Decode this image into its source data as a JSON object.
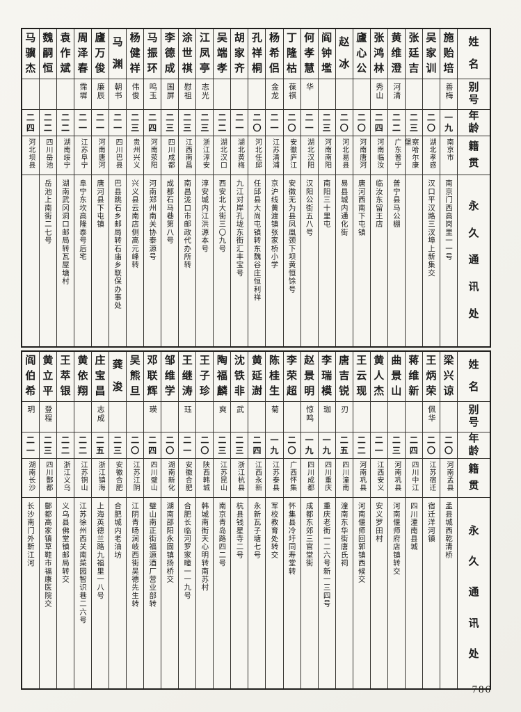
{
  "page_number": "786",
  "header_labels": {
    "name": "姓名",
    "alias": "别号",
    "age": "年龄",
    "native": "籍贯",
    "address": "永久通讯处"
  },
  "sections": [
    {
      "persons": [
        {
          "name": "施贻培",
          "alias": "善梅",
          "age": "一九",
          "native": "南京市",
          "address": "南京门西高岗里一一号"
        },
        {
          "name": "吴家训",
          "alias": "",
          "age": "二〇",
          "native": "湖北孝感",
          "address": "汉口平汉路三汊埠上新集交"
        },
        {
          "name": "张廷吉",
          "alias": "",
          "age": "二三",
          "native": "察哈尔康堡",
          "address": ""
        },
        {
          "name": "黄维澄",
          "alias": "河清",
          "age": "二二",
          "native": "广东普宁",
          "address": "普宁县马公棚"
        },
        {
          "name": "张鸿林",
          "alias": "秀山",
          "age": "二四",
          "native": "河南临汝",
          "address": "临汝东留王店"
        },
        {
          "name": "廬心公",
          "alias": "",
          "age": "二〇",
          "native": "河南唐河",
          "address": "唐河西南下屯镇"
        },
        {
          "name": "赵冰",
          "alias": "",
          "age": "二〇",
          "native": "河北易县",
          "address": "易县城内通化街"
        },
        {
          "name": "阎钟壏",
          "alias": "",
          "age": "二三",
          "native": "河南南阳",
          "address": "南阳三十里屯"
        },
        {
          "name": "何孝慧",
          "alias": "华",
          "age": "二一",
          "native": "湖北汉阳",
          "address": "汉阳公街五八号"
        },
        {
          "name": "丁隆枯",
          "alias": "葆祺",
          "age": "二〇",
          "native": "安徽庐江",
          "address": "安徽无为县凤凰颈下坝黄恒馀号"
        },
        {
          "name": "杨希侣",
          "alias": "金龙",
          "age": "二一",
          "native": "江苏清浦",
          "address": "京沪线黄渡镇张家桥小学"
        },
        {
          "name": "孔祥桐",
          "alias": "",
          "age": "二〇",
          "native": "河北任邱",
          "address": "任邱县大尚屯镇转东魏谷庄恒利祥"
        },
        {
          "name": "胡家齐",
          "alias": "",
          "age": "二一",
          "native": "湖北黄梅",
          "address": "九江对岸孔垅东街汇丰宝号"
        },
        {
          "name": "吴端孝",
          "alias": "",
          "age": "二二",
          "native": "湖北汉口",
          "address": "西安北大街三〇九号"
        },
        {
          "name": "江凤亭",
          "alias": "志光",
          "age": "二三",
          "native": "浙江淳安",
          "address": "淳安城内江洪源本号"
        },
        {
          "name": "涂世祺",
          "alias": "慰祖",
          "age": "二三",
          "native": "江西南昌",
          "address": "南昌泷口市邮政代办所转"
        },
        {
          "name": "李德成",
          "alias": "国屏",
          "age": "二三",
          "native": "四川成都",
          "address": "成都石马巷第八号"
        },
        {
          "name": "马振环",
          "alias": "鸣玉",
          "age": "二四",
          "native": "河南荥阳",
          "address": "河南郑州南关协泰源号"
        },
        {
          "name": "杨健祥",
          "alias": "伟俊",
          "age": "二三",
          "native": "贵州兴义",
          "address": "兴义县云南店侧高元峰转"
        },
        {
          "name": "马渊",
          "alias": "朝书",
          "age": "二一",
          "native": "四川巴县",
          "address": "巴县跳石乡邮局转石庙乡联保办事处"
        },
        {
          "name": "廬万俊",
          "alias": "廉辰",
          "age": "二一",
          "native": "河南唐河",
          "address": "唐河县下屯镇"
        },
        {
          "name": "周泽春",
          "alias": "霈墀",
          "age": "二一",
          "native": "江苏阜宁",
          "address": "阜宁东坎高隆泰号后宅"
        },
        {
          "name": "袁作斌",
          "alias": "",
          "age": "二二",
          "native": "湖南绥宁",
          "address": "湖南武冈洞口邮局转瓦屋塘村"
        },
        {
          "name": "魏嗣恒",
          "alias": "",
          "age": "二二",
          "native": "四川岳池",
          "address": "岳池上南街二七号"
        },
        {
          "name": "马骥杰",
          "alias": "",
          "age": "二四",
          "native": "河北坝县",
          "address": ""
        }
      ]
    },
    {
      "persons": [
        {
          "name": "梁兴谅",
          "alias": "",
          "age": "二〇",
          "native": "河南孟县",
          "address": "孟县城西乾清桥"
        },
        {
          "name": "王炳荣",
          "alias": "佩华",
          "age": "二〇",
          "native": "江苏宿迁",
          "address": "宿迁洋河镇"
        },
        {
          "name": "蒋维新",
          "alias": "",
          "age": "二四",
          "native": "四川中江",
          "address": "四川潼南县城"
        },
        {
          "name": "曲景山",
          "alias": "",
          "age": "二三",
          "native": "河南巩县",
          "address": "河南偃师府店镇转交"
        },
        {
          "name": "黄人杰",
          "alias": "",
          "age": "二一",
          "native": "江西安义",
          "address": "安义罗田村"
        },
        {
          "name": "王云现",
          "alias": "",
          "age": "二二",
          "native": "河南巩县",
          "address": "河南偃师回郭镇西候交"
        },
        {
          "name": "唐吉锐",
          "alias": "刃",
          "age": "二五",
          "native": "四川潼南",
          "address": "潼南东华街唐氏祠"
        },
        {
          "name": "李瑞模",
          "alias": "珈",
          "age": "一九",
          "native": "四川重庆",
          "address": "重庆老街一二六号新一三四号"
        },
        {
          "name": "赵景明",
          "alias": "惊鸣",
          "age": "一九",
          "native": "四川成都",
          "address": "成都东郊三官堂街"
        },
        {
          "name": "李荣超",
          "alias": "",
          "age": "二〇",
          "native": "广西怀集",
          "address": "怀集县冷圩同寿堂转"
        },
        {
          "name": "陈桂生",
          "alias": "菊",
          "age": "一九",
          "native": "江苏泰县",
          "address": "军校教育处转交"
        },
        {
          "name": "黄延澍",
          "alias": "",
          "age": "二四",
          "native": "江西永新",
          "address": "永新瓦子塘七号"
        },
        {
          "name": "沈铁非",
          "alias": "武",
          "age": "二三",
          "native": "浙江杭县",
          "address": "杭县钱星寺二号"
        },
        {
          "name": "陶福麟",
          "alias": "爽",
          "age": "二三",
          "native": "江苏昆山",
          "address": "南京青岛路四二号"
        },
        {
          "name": "王子珍",
          "alias": "",
          "age": "二〇",
          "native": "陕西韩城",
          "address": "韩城南街天心明转南苏村"
        },
        {
          "name": "王继涛",
          "alias": "珏",
          "age": "二一",
          "native": "安徽合肥",
          "address": "合肥长临河罗家疃一一九号"
        },
        {
          "name": "邹维学",
          "alias": "",
          "age": "二〇",
          "native": "湖南新化",
          "address": "湖南邵阳永固镇扬桥交"
        },
        {
          "name": "邓联辉",
          "alias": "瑛",
          "age": "二四",
          "native": "四川璧山",
          "address": "璧山南正街福源酒厂营业部转"
        },
        {
          "name": "吴熊旦",
          "alias": "",
          "age": "二〇",
          "native": "江苏江阴",
          "address": "江阴青旸涧岐西街吴德先生转"
        },
        {
          "name": "龚浚",
          "alias": "",
          "age": "二三",
          "native": "安徽合肥",
          "address": "合肥城内老油坊"
        },
        {
          "name": "庄宝昌",
          "alias": "志成",
          "age": "二五",
          "native": "浙江镇海",
          "address": "上海英德兰路九福里一八号"
        },
        {
          "name": "黄依翔",
          "alias": "",
          "age": "二二",
          "native": "江苏铜山",
          "address": "江苏徐州西关南菜园智识巷二六号"
        },
        {
          "name": "王萃银",
          "alias": "",
          "age": "二二",
          "native": "浙江义乌",
          "address": "义乌县佛堂镇邮局转交"
        },
        {
          "name": "黄立平",
          "alias": "登程",
          "age": "二三",
          "native": "四川酆都",
          "address": "酆都高家镇草鞋市福康医院交"
        },
        {
          "name": "阎伯希",
          "alias": "玥",
          "age": "二一",
          "native": "湖南长沙",
          "address": "长沙南门外靳江河"
        }
      ]
    }
  ]
}
